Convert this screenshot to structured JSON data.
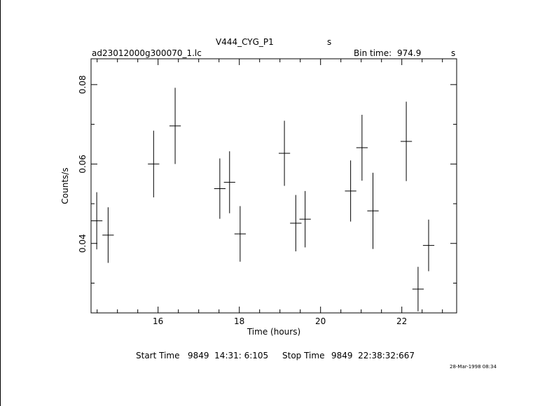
{
  "header": {
    "object": "V444_CYG_P1",
    "unit_s": "s",
    "filename": "ad23012000g300070_1.lc",
    "bin_label": "Bin time:",
    "bin_value": "974.9",
    "bin_unit": "s"
  },
  "footer": {
    "start_label": "Start Time",
    "start_value": "9849  14:31: 6:105",
    "stop_label": "Stop Time",
    "stop_value": "9849  22:38:32:667",
    "date_stamp": "28-Mar-1998 08:34"
  },
  "chart_data": {
    "type": "scatter",
    "title": "V444_CYG_P1",
    "xlabel": "Time (hours)",
    "ylabel": "Counts/s",
    "xlim": [
      14.35,
      23.35
    ],
    "ylim": [
      0.0225,
      0.0865
    ],
    "x_ticks": [
      16,
      18,
      20,
      22
    ],
    "x_tick_labels": [
      "16",
      "18",
      "20",
      "22"
    ],
    "y_ticks": [
      0.04,
      0.06,
      0.08
    ],
    "y_tick_labels": [
      "0.04",
      "0.06",
      "0.08"
    ],
    "grid": false,
    "points": [
      {
        "x": 14.49,
        "xerr": 0.14,
        "y": 0.0457,
        "yerr": 0.0072
      },
      {
        "x": 14.77,
        "xerr": 0.14,
        "y": 0.0421,
        "yerr": 0.007
      },
      {
        "x": 15.89,
        "xerr": 0.14,
        "y": 0.06,
        "yerr": 0.0084
      },
      {
        "x": 16.42,
        "xerr": 0.14,
        "y": 0.0696,
        "yerr": 0.0096
      },
      {
        "x": 17.52,
        "xerr": 0.14,
        "y": 0.0538,
        "yerr": 0.0076
      },
      {
        "x": 17.76,
        "xerr": 0.14,
        "y": 0.0554,
        "yerr": 0.0078
      },
      {
        "x": 18.02,
        "xerr": 0.14,
        "y": 0.0424,
        "yerr": 0.007
      },
      {
        "x": 19.11,
        "xerr": 0.14,
        "y": 0.0627,
        "yerr": 0.0082
      },
      {
        "x": 19.39,
        "xerr": 0.14,
        "y": 0.0451,
        "yerr": 0.0071
      },
      {
        "x": 19.62,
        "xerr": 0.14,
        "y": 0.0461,
        "yerr": 0.0071
      },
      {
        "x": 20.74,
        "xerr": 0.14,
        "y": 0.0532,
        "yerr": 0.0077
      },
      {
        "x": 21.02,
        "xerr": 0.14,
        "y": 0.0641,
        "yerr": 0.0083
      },
      {
        "x": 21.29,
        "xerr": 0.14,
        "y": 0.0482,
        "yerr": 0.0096
      },
      {
        "x": 22.11,
        "xerr": 0.14,
        "y": 0.0657,
        "yerr": 0.01
      },
      {
        "x": 22.4,
        "xerr": 0.14,
        "y": 0.0285,
        "yerr": 0.0056
      },
      {
        "x": 22.66,
        "xerr": 0.14,
        "y": 0.0395,
        "yerr": 0.0065
      }
    ]
  }
}
